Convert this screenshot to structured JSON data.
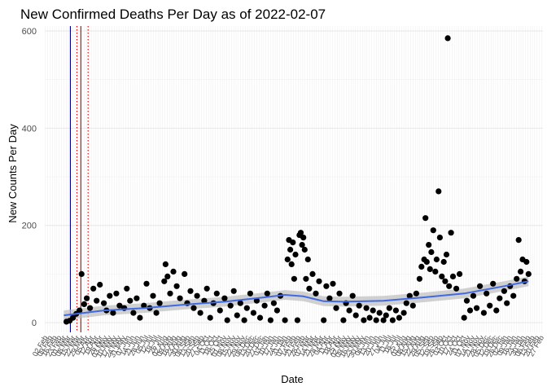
{
  "chart_data": {
    "type": "scatter",
    "title": "New Confirmed Deaths Per Day as of 2022-02-07",
    "xlabel": "Date",
    "ylabel": "New Counts Per Day",
    "xlim": [
      "2020-02-01",
      "2022-03-01"
    ],
    "ylim": [
      -20,
      610
    ],
    "yticks": [
      0,
      200,
      400,
      600
    ],
    "x_tick_note": "dense, overlapping rotated date labels (one per week), illegible in the original",
    "grid": true,
    "legend": "none",
    "vlines": [
      {
        "date": "2020-03-11",
        "color": "#00008b",
        "style": "solid"
      },
      {
        "date": "2020-03-27",
        "color": "#cc0000",
        "style": "solid"
      },
      {
        "date": "2020-03-21",
        "color": "#cc0000",
        "style": "dotted"
      },
      {
        "date": "2020-04-07",
        "color": "#cc0000",
        "style": "dotted"
      }
    ],
    "smooth": {
      "color": "#4169e1",
      "band_color": "#bdbdbd",
      "points": [
        {
          "x": "2020-03-01",
          "y": 15
        },
        {
          "x": "2020-05-01",
          "y": 25
        },
        {
          "x": "2020-07-01",
          "y": 30
        },
        {
          "x": "2020-09-01",
          "y": 37
        },
        {
          "x": "2020-11-01",
          "y": 43
        },
        {
          "x": "2021-01-01",
          "y": 52
        },
        {
          "x": "2021-02-01",
          "y": 57
        },
        {
          "x": "2021-03-01",
          "y": 54
        },
        {
          "x": "2021-04-01",
          "y": 44
        },
        {
          "x": "2021-05-01",
          "y": 43
        },
        {
          "x": "2021-07-01",
          "y": 45
        },
        {
          "x": "2021-09-01",
          "y": 52
        },
        {
          "x": "2021-11-01",
          "y": 60
        },
        {
          "x": "2022-01-01",
          "y": 75
        },
        {
          "x": "2022-02-07",
          "y": 85
        }
      ]
    },
    "series": [
      {
        "points": [
          {
            "x": "2020-03-05",
            "y": 2
          },
          {
            "x": "2020-03-10",
            "y": 4
          },
          {
            "x": "2020-03-15",
            "y": 10
          },
          {
            "x": "2020-03-20",
            "y": 18
          },
          {
            "x": "2020-03-25",
            "y": 25
          },
          {
            "x": "2020-03-28",
            "y": 100
          },
          {
            "x": "2020-04-01",
            "y": 38
          },
          {
            "x": "2020-04-05",
            "y": 50
          },
          {
            "x": "2020-04-10",
            "y": 30
          },
          {
            "x": "2020-04-15",
            "y": 70
          },
          {
            "x": "2020-04-20",
            "y": 45
          },
          {
            "x": "2020-04-25",
            "y": 78
          },
          {
            "x": "2020-05-01",
            "y": 40
          },
          {
            "x": "2020-05-05",
            "y": 25
          },
          {
            "x": "2020-05-10",
            "y": 55
          },
          {
            "x": "2020-05-15",
            "y": 20
          },
          {
            "x": "2020-05-20",
            "y": 60
          },
          {
            "x": "2020-05-25",
            "y": 35
          },
          {
            "x": "2020-06-01",
            "y": 30
          },
          {
            "x": "2020-06-05",
            "y": 70
          },
          {
            "x": "2020-06-10",
            "y": 45
          },
          {
            "x": "2020-06-15",
            "y": 20
          },
          {
            "x": "2020-06-20",
            "y": 50
          },
          {
            "x": "2020-06-25",
            "y": 10
          },
          {
            "x": "2020-07-01",
            "y": 35
          },
          {
            "x": "2020-07-05",
            "y": 80
          },
          {
            "x": "2020-07-10",
            "y": 30
          },
          {
            "x": "2020-07-15",
            "y": 55
          },
          {
            "x": "2020-07-20",
            "y": 20
          },
          {
            "x": "2020-07-25",
            "y": 40
          },
          {
            "x": "2020-08-01",
            "y": 85
          },
          {
            "x": "2020-08-03",
            "y": 120
          },
          {
            "x": "2020-08-06",
            "y": 95
          },
          {
            "x": "2020-08-10",
            "y": 60
          },
          {
            "x": "2020-08-15",
            "y": 105
          },
          {
            "x": "2020-08-20",
            "y": 75
          },
          {
            "x": "2020-08-25",
            "y": 50
          },
          {
            "x": "2020-09-01",
            "y": 100
          },
          {
            "x": "2020-09-05",
            "y": 40
          },
          {
            "x": "2020-09-10",
            "y": 65
          },
          {
            "x": "2020-09-15",
            "y": 30
          },
          {
            "x": "2020-09-20",
            "y": 55
          },
          {
            "x": "2020-09-25",
            "y": 20
          },
          {
            "x": "2020-10-01",
            "y": 45
          },
          {
            "x": "2020-10-05",
            "y": 70
          },
          {
            "x": "2020-10-10",
            "y": 10
          },
          {
            "x": "2020-10-15",
            "y": 40
          },
          {
            "x": "2020-10-20",
            "y": 60
          },
          {
            "x": "2020-10-25",
            "y": 25
          },
          {
            "x": "2020-11-01",
            "y": 50
          },
          {
            "x": "2020-11-05",
            "y": 5
          },
          {
            "x": "2020-11-10",
            "y": 35
          },
          {
            "x": "2020-11-15",
            "y": 65
          },
          {
            "x": "2020-11-20",
            "y": 15
          },
          {
            "x": "2020-11-25",
            "y": 40
          },
          {
            "x": "2020-12-01",
            "y": 5
          },
          {
            "x": "2020-12-05",
            "y": 30
          },
          {
            "x": "2020-12-10",
            "y": 60
          },
          {
            "x": "2020-12-15",
            "y": 20
          },
          {
            "x": "2020-12-20",
            "y": 45
          },
          {
            "x": "2020-12-25",
            "y": 10
          },
          {
            "x": "2021-01-01",
            "y": 35
          },
          {
            "x": "2021-01-05",
            "y": 60
          },
          {
            "x": "2021-01-10",
            "y": 5
          },
          {
            "x": "2021-01-15",
            "y": 40
          },
          {
            "x": "2021-01-20",
            "y": 25
          },
          {
            "x": "2021-01-25",
            "y": 55
          },
          {
            "x": "2021-02-01",
            "y": 5
          },
          {
            "x": "2021-02-05",
            "y": 130
          },
          {
            "x": "2021-02-07",
            "y": 170
          },
          {
            "x": "2021-02-09",
            "y": 150
          },
          {
            "x": "2021-02-11",
            "y": 120
          },
          {
            "x": "2021-02-13",
            "y": 165
          },
          {
            "x": "2021-02-15",
            "y": 90
          },
          {
            "x": "2021-02-17",
            "y": 140
          },
          {
            "x": "2021-02-20",
            "y": 5
          },
          {
            "x": "2021-02-23",
            "y": 180
          },
          {
            "x": "2021-02-25",
            "y": 185
          },
          {
            "x": "2021-02-27",
            "y": 160
          },
          {
            "x": "2021-03-01",
            "y": 175
          },
          {
            "x": "2021-03-03",
            "y": 150
          },
          {
            "x": "2021-03-05",
            "y": 90
          },
          {
            "x": "2021-03-08",
            "y": 130
          },
          {
            "x": "2021-03-10",
            "y": 70
          },
          {
            "x": "2021-03-15",
            "y": 100
          },
          {
            "x": "2021-03-20",
            "y": 60
          },
          {
            "x": "2021-03-25",
            "y": 85
          },
          {
            "x": "2021-04-01",
            "y": 5
          },
          {
            "x": "2021-04-05",
            "y": 75
          },
          {
            "x": "2021-04-10",
            "y": 50
          },
          {
            "x": "2021-04-15",
            "y": 80
          },
          {
            "x": "2021-04-20",
            "y": 30
          },
          {
            "x": "2021-04-25",
            "y": 60
          },
          {
            "x": "2021-05-01",
            "y": 5
          },
          {
            "x": "2021-05-05",
            "y": 40
          },
          {
            "x": "2021-05-10",
            "y": 25
          },
          {
            "x": "2021-05-15",
            "y": 55
          },
          {
            "x": "2021-05-20",
            "y": 15
          },
          {
            "x": "2021-05-25",
            "y": 35
          },
          {
            "x": "2021-06-01",
            "y": 5
          },
          {
            "x": "2021-06-05",
            "y": 30
          },
          {
            "x": "2021-06-10",
            "y": 10
          },
          {
            "x": "2021-06-15",
            "y": 25
          },
          {
            "x": "2021-06-20",
            "y": 5
          },
          {
            "x": "2021-06-25",
            "y": 20
          },
          {
            "x": "2021-07-01",
            "y": 5
          },
          {
            "x": "2021-07-05",
            "y": 15
          },
          {
            "x": "2021-07-10",
            "y": 30
          },
          {
            "x": "2021-07-15",
            "y": 5
          },
          {
            "x": "2021-07-20",
            "y": 25
          },
          {
            "x": "2021-07-25",
            "y": 10
          },
          {
            "x": "2021-08-01",
            "y": 20
          },
          {
            "x": "2021-08-05",
            "y": 40
          },
          {
            "x": "2021-08-10",
            "y": 55
          },
          {
            "x": "2021-08-15",
            "y": 35
          },
          {
            "x": "2021-08-20",
            "y": 60
          },
          {
            "x": "2021-08-25",
            "y": 90
          },
          {
            "x": "2021-08-28",
            "y": 115
          },
          {
            "x": "2021-09-01",
            "y": 130
          },
          {
            "x": "2021-09-03",
            "y": 215
          },
          {
            "x": "2021-09-05",
            "y": 125
          },
          {
            "x": "2021-09-08",
            "y": 160
          },
          {
            "x": "2021-09-10",
            "y": 110
          },
          {
            "x": "2021-09-12",
            "y": 145
          },
          {
            "x": "2021-09-15",
            "y": 190
          },
          {
            "x": "2021-09-18",
            "y": 105
          },
          {
            "x": "2021-09-20",
            "y": 130
          },
          {
            "x": "2021-09-23",
            "y": 270
          },
          {
            "x": "2021-09-25",
            "y": 175
          },
          {
            "x": "2021-09-28",
            "y": 95
          },
          {
            "x": "2021-10-01",
            "y": 125
          },
          {
            "x": "2021-10-03",
            "y": 85
          },
          {
            "x": "2021-10-05",
            "y": 140
          },
          {
            "x": "2021-10-07",
            "y": 585
          },
          {
            "x": "2021-10-09",
            "y": 75
          },
          {
            "x": "2021-10-12",
            "y": 185
          },
          {
            "x": "2021-10-15",
            "y": 95
          },
          {
            "x": "2021-10-20",
            "y": 70
          },
          {
            "x": "2021-10-25",
            "y": 100
          },
          {
            "x": "2021-11-01",
            "y": 10
          },
          {
            "x": "2021-11-05",
            "y": 45
          },
          {
            "x": "2021-11-10",
            "y": 25
          },
          {
            "x": "2021-11-15",
            "y": 55
          },
          {
            "x": "2021-11-20",
            "y": 30
          },
          {
            "x": "2021-11-25",
            "y": 75
          },
          {
            "x": "2021-12-01",
            "y": 20
          },
          {
            "x": "2021-12-05",
            "y": 60
          },
          {
            "x": "2021-12-10",
            "y": 35
          },
          {
            "x": "2021-12-15",
            "y": 80
          },
          {
            "x": "2021-12-20",
            "y": 25
          },
          {
            "x": "2021-12-25",
            "y": 50
          },
          {
            "x": "2022-01-01",
            "y": 65
          },
          {
            "x": "2022-01-05",
            "y": 40
          },
          {
            "x": "2022-01-10",
            "y": 75
          },
          {
            "x": "2022-01-15",
            "y": 55
          },
          {
            "x": "2022-01-20",
            "y": 90
          },
          {
            "x": "2022-01-23",
            "y": 170
          },
          {
            "x": "2022-01-26",
            "y": 105
          },
          {
            "x": "2022-01-29",
            "y": 130
          },
          {
            "x": "2022-02-01",
            "y": 85
          },
          {
            "x": "2022-02-04",
            "y": 125
          },
          {
            "x": "2022-02-07",
            "y": 100
          }
        ]
      }
    ]
  }
}
